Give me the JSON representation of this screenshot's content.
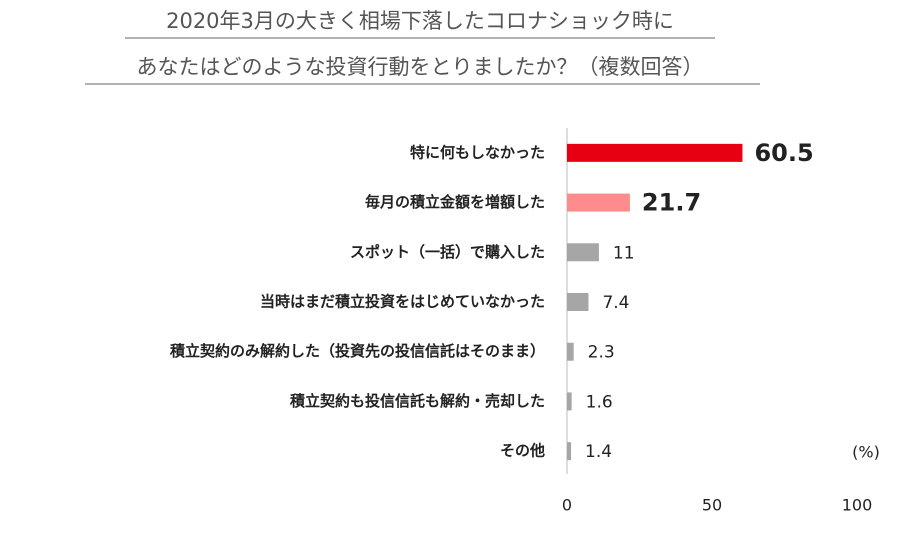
{
  "chart_data": {
    "type": "barh",
    "title": [
      "2020年3月の大きく相場下落したコロナショック時に",
      "あなたはどのような投資行動をとりましたか？（複数回答）"
    ],
    "categories": [
      "特に何もしなかった",
      "毎月の積立金額を増額した",
      "スポット（一括）で購入した",
      "当時はまだ積立投資をはじめていなかった",
      "積立契約のみ解約した（投資先の投信信託はそのまま）",
      "積立契約も投信信託も解約・売却した",
      "その他"
    ],
    "values": [
      60.5,
      21.7,
      11,
      7.4,
      2.3,
      1.6,
      1.4
    ],
    "colors": [
      "#e60012",
      "#ff8c8c",
      "#a6a6a6",
      "#a6a6a6",
      "#a6a6a6",
      "#a6a6a6",
      "#a6a6a6"
    ],
    "unit_label": "(%)",
    "xlim": [
      0,
      100
    ],
    "xticks": [
      0,
      50,
      100
    ],
    "grid": false
  }
}
